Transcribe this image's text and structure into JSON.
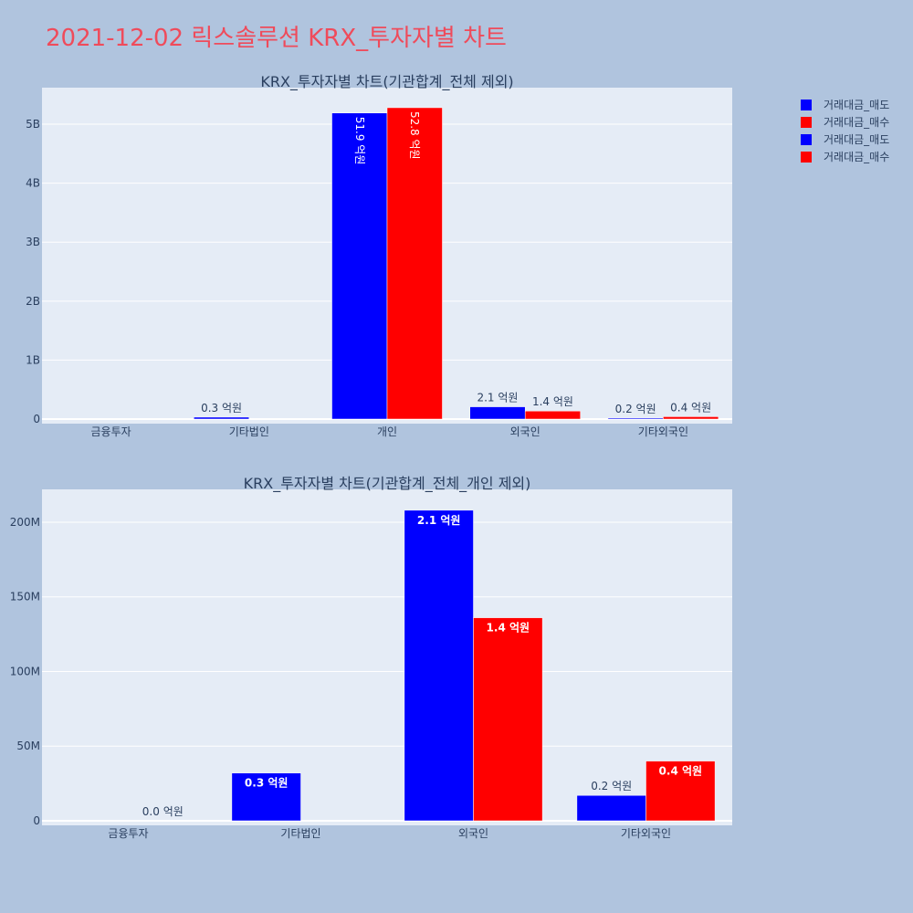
{
  "title": "2021-12-02 릭스솔루션 KRX_투자자별 차트",
  "colors": {
    "background": "#b0c4de",
    "plot_bg": "#e5ecf6",
    "title": "#ef4b5b",
    "text": "#2a3f5f",
    "sell": "#0000ff",
    "buy": "#ff0000"
  },
  "legend": [
    "거래대금_매도",
    "거래대금_매수",
    "거래대금_매도",
    "거래대금_매수"
  ],
  "chart_data": [
    {
      "type": "bar",
      "title": "KRX_투자자별 차트(기관합계_전체 제외)",
      "categories": [
        "금융투자",
        "기타법인",
        "개인",
        "외국인",
        "기타외국인"
      ],
      "series": [
        {
          "name": "거래대금_매도",
          "values": [
            0,
            32000000,
            5190000000,
            208000000,
            17000000
          ],
          "labels": [
            "",
            "0.3 억원",
            "51.9 억원",
            "2.1 억원",
            "0.2 억원"
          ]
        },
        {
          "name": "거래대금_매수",
          "values": [
            0,
            0,
            5280000000,
            136000000,
            40000000
          ],
          "labels": [
            "",
            "",
            "52.8 억원",
            "1.4 억원",
            "0.4 억원"
          ]
        }
      ],
      "yticks": [
        0,
        1000000000,
        2000000000,
        3000000000,
        4000000000,
        5000000000
      ],
      "ytick_labels": [
        "0",
        "1B",
        "2B",
        "3B",
        "4B",
        "5B"
      ],
      "ylim": [
        0,
        5620000000
      ],
      "grid": true
    },
    {
      "type": "bar",
      "title": "KRX_투자자별 차트(기관합계_전체_개인 제외)",
      "categories": [
        "금융투자",
        "기타법인",
        "외국인",
        "기타외국인"
      ],
      "series": [
        {
          "name": "거래대금_매도",
          "values": [
            0,
            32000000,
            208000000,
            17000000
          ],
          "labels": [
            "",
            "0.3 억원",
            "2.1 억원",
            "0.2 억원"
          ]
        },
        {
          "name": "거래대금_매수",
          "values": [
            0,
            0,
            136000000,
            40000000
          ],
          "labels": [
            "0.0 억원",
            "",
            "1.4 억원",
            "0.4 억원"
          ]
        }
      ],
      "yticks": [
        0,
        50000000,
        100000000,
        150000000,
        200000000
      ],
      "ytick_labels": [
        "0",
        "50M",
        "100M",
        "150M",
        "200M"
      ],
      "ylim": [
        0,
        222000000
      ],
      "grid": true
    }
  ]
}
